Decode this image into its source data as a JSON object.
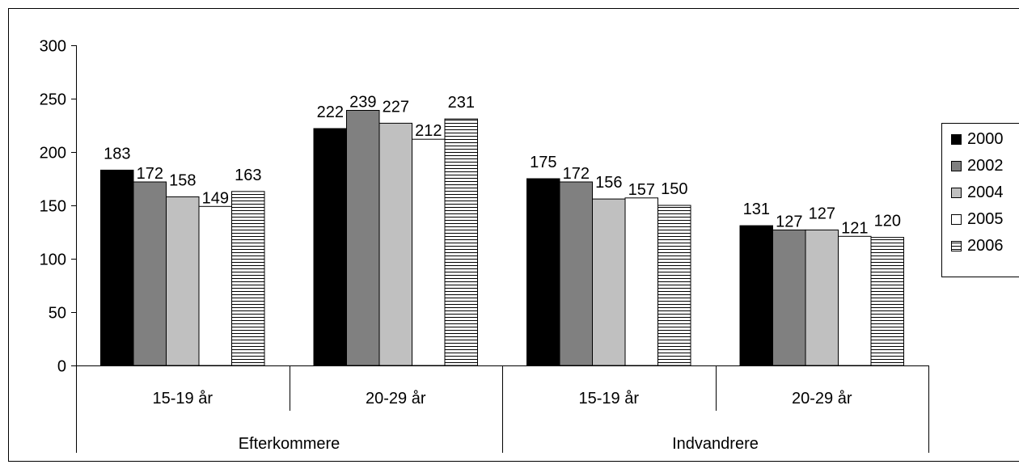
{
  "chart_data": {
    "type": "bar",
    "title": "",
    "xlabel": "",
    "ylabel": "",
    "ylim": [
      0,
      300
    ],
    "yticks": [
      0,
      50,
      100,
      150,
      200,
      250,
      300
    ],
    "grid": false,
    "legend_position": "right",
    "groups": [
      {
        "label": "Efterkommere",
        "categories": [
          "15-19 år",
          "20-29 år"
        ]
      },
      {
        "label": "Indvandrere",
        "categories": [
          "15-19 år",
          "20-29 år"
        ]
      }
    ],
    "series": [
      {
        "name": "2000",
        "fill": "#000000",
        "pattern": "solid",
        "values": [
          183,
          222,
          175,
          131
        ]
      },
      {
        "name": "2002",
        "fill": "#808080",
        "pattern": "solid",
        "values": [
          172,
          239,
          172,
          127
        ]
      },
      {
        "name": "2004",
        "fill": "#c0c0c0",
        "pattern": "solid",
        "values": [
          158,
          227,
          156,
          127
        ]
      },
      {
        "name": "2005",
        "fill": "#ffffff",
        "pattern": "solid",
        "values": [
          149,
          212,
          157,
          121
        ]
      },
      {
        "name": "2006",
        "fill": "#ffffff",
        "pattern": "horizontal-stripes",
        "values": [
          163,
          231,
          150,
          120
        ]
      }
    ]
  }
}
